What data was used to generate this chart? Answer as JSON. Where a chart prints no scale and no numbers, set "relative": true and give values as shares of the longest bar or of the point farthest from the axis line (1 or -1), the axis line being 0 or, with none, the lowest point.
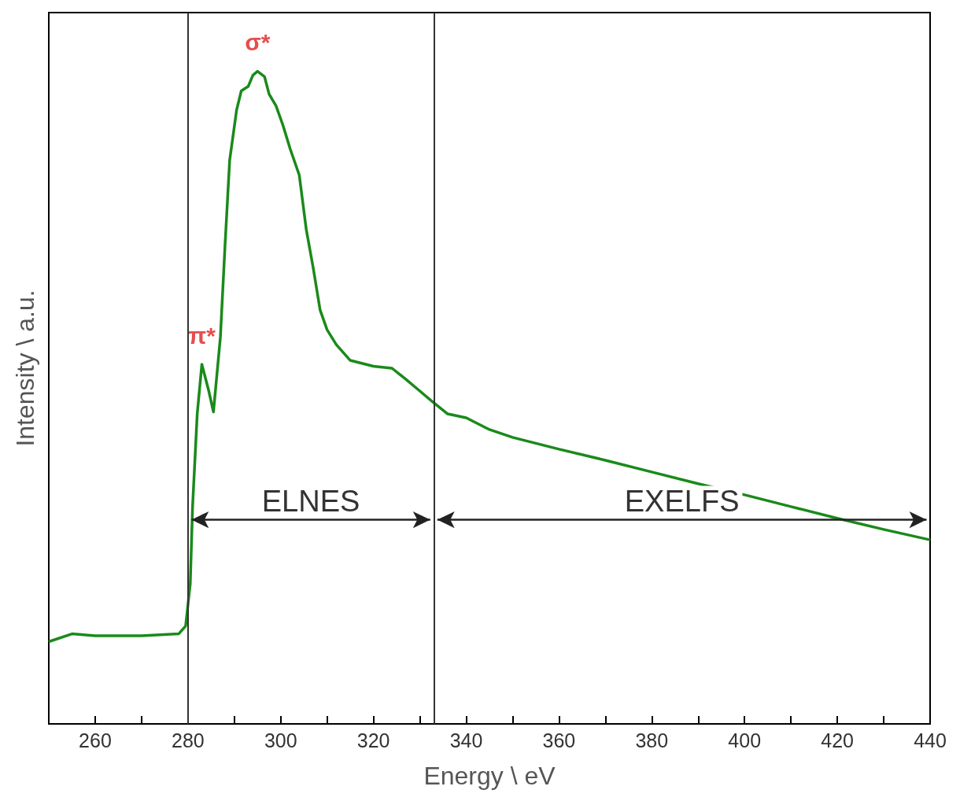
{
  "chart_data": {
    "type": "line",
    "xlabel": "Energy \\ eV",
    "ylabel": "Intensity \\ a.u.",
    "relative": true,
    "xlim": [
      250,
      440
    ],
    "xticks": [
      260,
      {
        "value": 270,
        "label": null
      },
      280,
      {
        "value": 290,
        "label": null
      },
      300,
      {
        "value": 310,
        "label": null
      },
      320,
      {
        "value": 330,
        "label": null
      },
      340,
      {
        "value": 350,
        "label": null
      },
      360,
      {
        "value": 370,
        "label": null
      },
      380,
      {
        "value": 390,
        "label": null
      },
      400,
      {
        "value": 410,
        "label": null
      },
      420,
      {
        "value": 430,
        "label": null
      },
      440
    ],
    "x": [
      250,
      255,
      260,
      270,
      278,
      279.5,
      280.5,
      281,
      282,
      283,
      284.5,
      285.5,
      287,
      288,
      289,
      290.5,
      291.5,
      293,
      294,
      295,
      296.5,
      297.5,
      299,
      300.5,
      302,
      304,
      305.5,
      307,
      308.5,
      310,
      312,
      315,
      320,
      324,
      327,
      330,
      333,
      336,
      340,
      345,
      350,
      360,
      370,
      380,
      390,
      400,
      410,
      420,
      430,
      440
    ],
    "series": [
      {
        "color": "#1a8a1a",
        "values": [
          0.126,
          0.138,
          0.135,
          0.135,
          0.138,
          0.15,
          0.215,
          0.333,
          0.475,
          0.551,
          0.51,
          0.478,
          0.593,
          0.734,
          0.864,
          0.941,
          0.97,
          0.977,
          0.994,
          1.0,
          0.992,
          0.965,
          0.947,
          0.917,
          0.882,
          0.841,
          0.758,
          0.699,
          0.634,
          0.604,
          0.581,
          0.557,
          0.548,
          0.545,
          0.528,
          0.51,
          0.492,
          0.475,
          0.469,
          0.451,
          0.439,
          0.421,
          0.404,
          0.386,
          0.368,
          0.351,
          0.333,
          0.315,
          0.298,
          0.282
        ]
      }
    ],
    "ref_lines": [
      {
        "axis": "x",
        "value": 280,
        "color": "#333333"
      },
      {
        "axis": "x",
        "value": 333,
        "color": "#333333"
      }
    ],
    "annotations": [
      "π*",
      "σ*",
      "ELNES",
      "EXELFS"
    ],
    "grid": false,
    "marker": "none",
    "line_style": "solid"
  }
}
